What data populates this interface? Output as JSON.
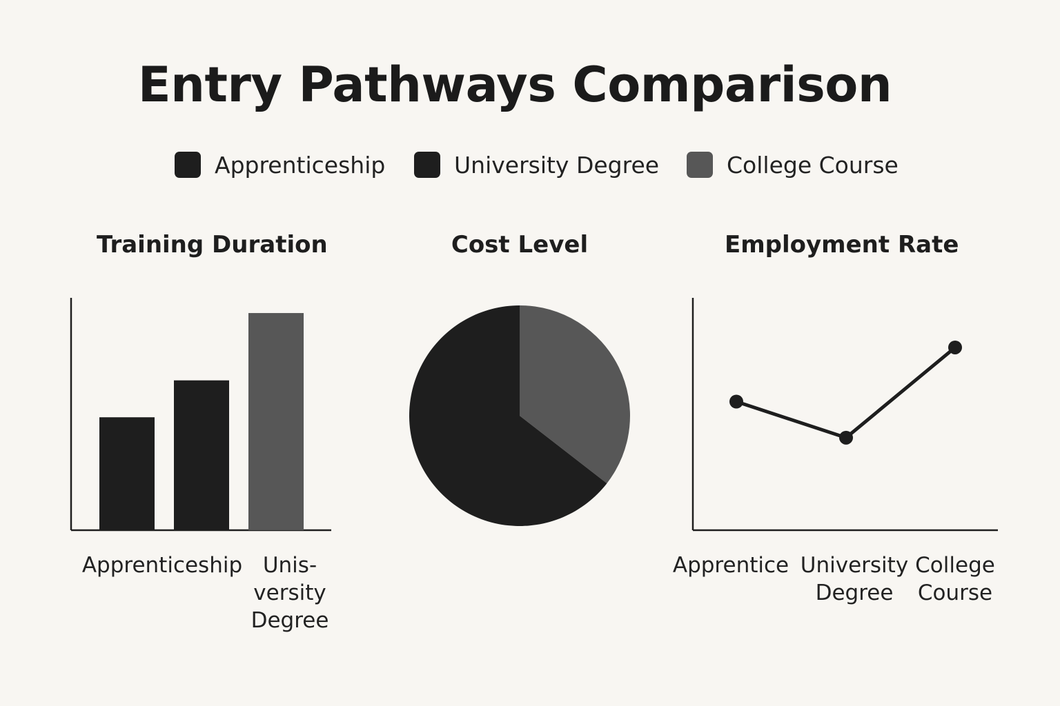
{
  "title": "Entry Pathways Comparison",
  "legend": [
    {
      "label": "Apprenticeship",
      "color": "#1e1e1e"
    },
    {
      "label": "University Degree",
      "color": "#1e1e1e"
    },
    {
      "label": "College Course",
      "color": "#575757"
    }
  ],
  "chart_data": [
    {
      "type": "bar",
      "title": "Training Duration",
      "categories": [
        "Apprenticeship",
        "Unis-\nversity\nDegree",
        ""
      ],
      "values": [
        52,
        69,
        100
      ],
      "colors": [
        "#1e1e1e",
        "#1e1e1e",
        "#575757"
      ],
      "ylim": [
        0,
        107
      ],
      "grid": false
    },
    {
      "type": "pie",
      "title": "Cost Level",
      "slices": [
        {
          "label": "College Course",
          "value": 35.5,
          "color": "#575757"
        },
        {
          "label": "University Degree",
          "value": 64.5,
          "color": "#1e1e1e"
        }
      ]
    },
    {
      "type": "line",
      "title": "Employment Rate",
      "categories": [
        "Apprentice",
        "University\nDegree",
        "College\nCourse"
      ],
      "values": [
        57,
        41,
        81
      ],
      "ylim": [
        0,
        103
      ],
      "color": "#1e1e1e",
      "grid": false
    }
  ]
}
